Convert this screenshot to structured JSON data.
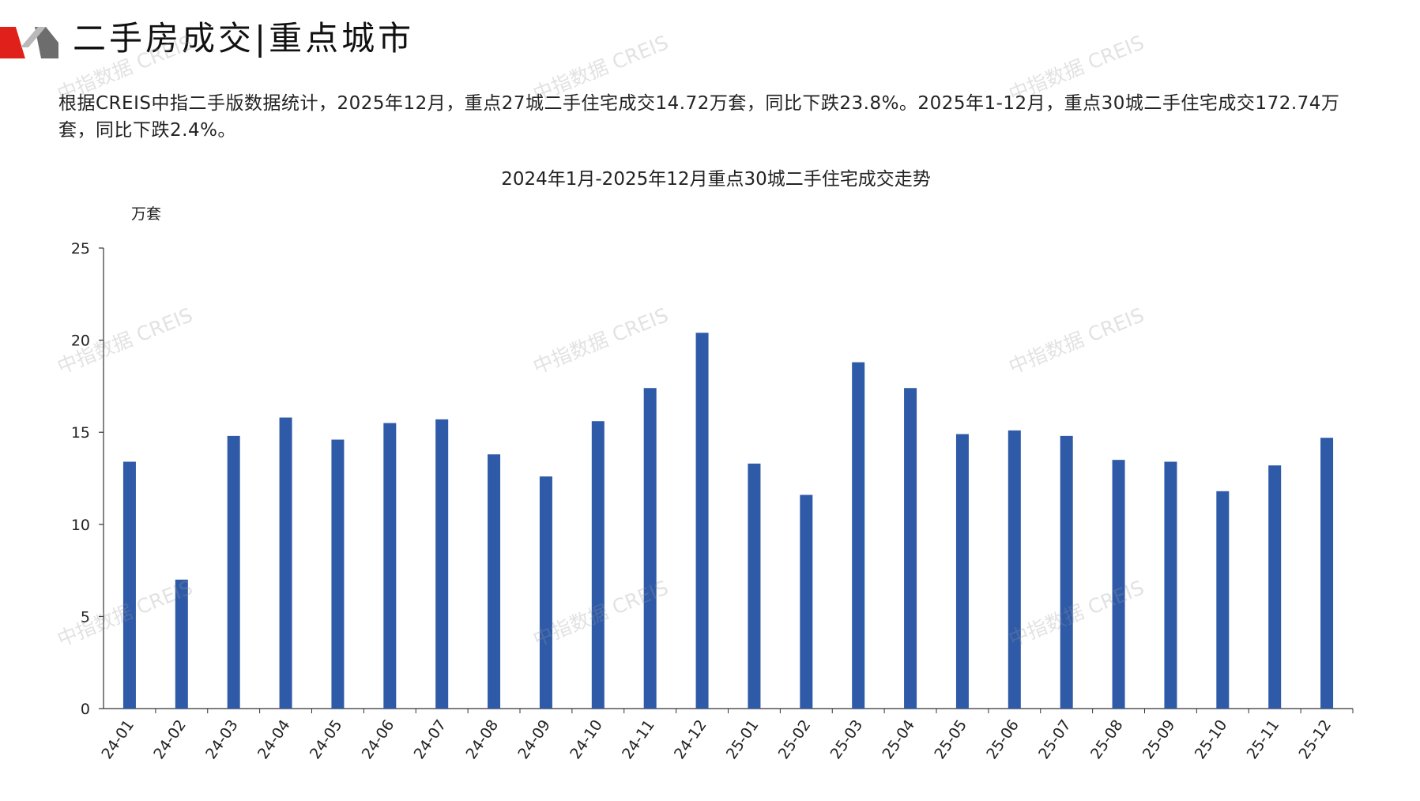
{
  "header": {
    "title": "二手房成交|重点城市",
    "accent_color": "#e0201b"
  },
  "summary": {
    "text": "根据CREIS中指二手版数据统计，2025年12月，重点27城二手住宅成交14.72万套，同比下跌23.8%。2025年1-12月，重点30城二手住宅成交172.74万套，同比下跌2.4%。"
  },
  "watermark": {
    "text": "中指数据 CREIS"
  },
  "chart_data": {
    "type": "bar",
    "title": "2024年1月-2025年12月重点30城二手住宅成交走势",
    "ylabel": "万套",
    "xlabel": "",
    "ylim": [
      0,
      25
    ],
    "yticks": [
      "0",
      "5",
      "10",
      "15",
      "20",
      "25"
    ],
    "grid": false,
    "bar_color": "#2e5aa8",
    "categories": [
      "24-01",
      "24-02",
      "24-03",
      "24-04",
      "24-05",
      "24-06",
      "24-07",
      "24-08",
      "24-09",
      "24-10",
      "24-11",
      "24-12",
      "25-01",
      "25-02",
      "25-03",
      "25-04",
      "25-05",
      "25-06",
      "25-07",
      "25-08",
      "25-09",
      "25-10",
      "25-11",
      "25-12"
    ],
    "values": [
      13.4,
      7.0,
      14.8,
      15.8,
      14.6,
      15.5,
      15.7,
      13.8,
      12.6,
      15.6,
      17.4,
      20.4,
      13.3,
      11.6,
      18.8,
      17.4,
      14.9,
      15.1,
      14.8,
      13.5,
      13.4,
      11.8,
      13.2,
      14.7
    ]
  }
}
